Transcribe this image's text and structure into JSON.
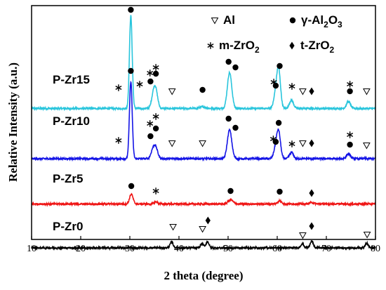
{
  "chart_data": {
    "type": "line",
    "title": "",
    "xlabel": "2 theta (degree)",
    "ylabel": "Relative Intensity (a.u.)",
    "xlim": [
      10,
      80
    ],
    "xticks": [
      "10",
      "20",
      "30",
      "40",
      "50",
      "60",
      "70",
      "80"
    ],
    "yticks": "none",
    "legend": {
      "placement": "top-right",
      "entries": [
        {
          "marker": "triangle-down-open",
          "text": "Al"
        },
        {
          "marker": "circle-filled",
          "text": "γ-Al",
          "sub": "2",
          "text2": "O",
          "sub2": "3"
        },
        {
          "marker": "asterisk",
          "text": "m-ZrO",
          "sub": "2"
        },
        {
          "marker": "diamond-filled",
          "text": "t-ZrO",
          "sub": "2"
        }
      ]
    },
    "series": [
      {
        "name": "P-Zr15",
        "color": "#29c5dc",
        "baseline": 0.85,
        "peaks": [
          [
            30.2,
            13.2,
            0.28
          ],
          [
            34.8,
            1.8,
            0.4
          ],
          [
            35.3,
            2.2,
            0.4
          ],
          [
            44.9,
            0.25,
            0.6
          ],
          [
            50.3,
            5.1,
            0.45
          ],
          [
            59.7,
            2.0,
            0.4
          ],
          [
            60.3,
            5.2,
            0.38
          ],
          [
            62.9,
            1.2,
            0.4
          ],
          [
            74.5,
            1.0,
            0.4
          ]
        ],
        "markers": [
          {
            "type": "circle",
            "x": 30.2,
            "y": 14.9
          },
          {
            "type": "asterisk",
            "x": 27.7,
            "y": 3.8
          },
          {
            "type": "asterisk",
            "x": 32.0,
            "y": 4.3
          },
          {
            "type": "asterisk",
            "x": 34.1,
            "y": 5.9
          },
          {
            "type": "circle",
            "x": 34.2,
            "y": 4.7
          },
          {
            "type": "asterisk",
            "x": 35.3,
            "y": 6.7
          },
          {
            "type": "circle",
            "x": 35.3,
            "y": 5.8
          },
          {
            "type": "triangle",
            "x": 38.6,
            "y": 3.3
          },
          {
            "type": "circle",
            "x": 44.8,
            "y": 3.5
          },
          {
            "type": "circle",
            "x": 50.1,
            "y": 7.5
          },
          {
            "type": "circle",
            "x": 51.5,
            "y": 6.7
          },
          {
            "type": "asterisk",
            "x": 59.3,
            "y": 4.6
          },
          {
            "type": "circle",
            "x": 60.5,
            "y": 6.9
          },
          {
            "type": "circle",
            "x": 59.7,
            "y": 4.1
          },
          {
            "type": "asterisk",
            "x": 63.0,
            "y": 4.0
          },
          {
            "type": "triangle",
            "x": 65.2,
            "y": 3.3
          },
          {
            "type": "diamond",
            "x": 67.0,
            "y": 3.3
          },
          {
            "type": "asterisk",
            "x": 74.8,
            "y": 4.3
          },
          {
            "type": "circle",
            "x": 74.8,
            "y": 3.3
          },
          {
            "type": "triangle",
            "x": 78.2,
            "y": 3.3
          }
        ]
      },
      {
        "name": "P-Zr10",
        "color": "#1414e6",
        "baseline": 0.6,
        "peaks": [
          [
            30.2,
            11.0,
            0.28
          ],
          [
            34.7,
            1.2,
            0.4
          ],
          [
            35.3,
            1.4,
            0.4
          ],
          [
            50.3,
            4.1,
            0.45
          ],
          [
            59.7,
            1.5,
            0.4
          ],
          [
            60.3,
            3.6,
            0.38
          ],
          [
            62.9,
            0.9,
            0.4
          ],
          [
            74.5,
            0.7,
            0.4
          ]
        ],
        "markers": [
          {
            "type": "circle",
            "x": 30.2,
            "y": 13.1
          },
          {
            "type": "asterisk",
            "x": 27.7,
            "y": 3.2
          },
          {
            "type": "asterisk",
            "x": 34.1,
            "y": 5.6
          },
          {
            "type": "circle",
            "x": 34.2,
            "y": 3.8
          },
          {
            "type": "asterisk",
            "x": 35.3,
            "y": 6.6
          },
          {
            "type": "circle",
            "x": 35.3,
            "y": 4.9
          },
          {
            "type": "triangle",
            "x": 38.6,
            "y": 2.8
          },
          {
            "type": "triangle",
            "x": 44.8,
            "y": 2.8
          },
          {
            "type": "circle",
            "x": 50.1,
            "y": 6.3
          },
          {
            "type": "circle",
            "x": 51.5,
            "y": 5.0
          },
          {
            "type": "asterisk",
            "x": 59.2,
            "y": 3.4
          },
          {
            "type": "circle",
            "x": 60.3,
            "y": 5.7
          },
          {
            "type": "circle",
            "x": 59.7,
            "y": 3.0
          },
          {
            "type": "asterisk",
            "x": 63.0,
            "y": 2.7
          },
          {
            "type": "triangle",
            "x": 65.2,
            "y": 2.8
          },
          {
            "type": "diamond",
            "x": 67.0,
            "y": 2.8
          },
          {
            "type": "asterisk",
            "x": 74.8,
            "y": 4.0
          },
          {
            "type": "circle",
            "x": 74.8,
            "y": 2.6
          },
          {
            "type": "triangle",
            "x": 78.2,
            "y": 2.5
          }
        ]
      },
      {
        "name": "P-Zr5",
        "color": "#ef1515",
        "baseline": 0.35,
        "peaks": [
          [
            30.3,
            1.4,
            0.35
          ],
          [
            35.3,
            0.3,
            0.4
          ],
          [
            50.5,
            0.6,
            0.5
          ],
          [
            60.5,
            0.45,
            0.4
          ],
          [
            67.0,
            0.2,
            0.5
          ]
        ],
        "markers": [
          {
            "type": "circle",
            "x": 30.3,
            "y": 2.9
          },
          {
            "type": "asterisk",
            "x": 35.3,
            "y": 2.2
          },
          {
            "type": "circle",
            "x": 50.5,
            "y": 2.2
          },
          {
            "type": "circle",
            "x": 60.5,
            "y": 2.1
          },
          {
            "type": "diamond",
            "x": 67.0,
            "y": 1.9
          }
        ]
      },
      {
        "name": "P-Zr0",
        "color": "#000000",
        "baseline": 0.2,
        "peaks": [
          [
            38.5,
            0.85,
            0.3
          ],
          [
            44.7,
            0.6,
            0.3
          ],
          [
            45.8,
            0.9,
            0.3
          ],
          [
            65.1,
            0.6,
            0.3
          ],
          [
            67.0,
            1.0,
            0.3
          ],
          [
            78.2,
            0.7,
            0.3
          ]
        ],
        "markers": [
          {
            "type": "triangle",
            "x": 38.8,
            "y": 3.2
          },
          {
            "type": "triangle",
            "x": 44.8,
            "y": 2.9
          },
          {
            "type": "diamond",
            "x": 45.9,
            "y": 4.1
          },
          {
            "type": "triangle",
            "x": 65.2,
            "y": 2.0
          },
          {
            "type": "diamond",
            "x": 67.0,
            "y": 3.3
          },
          {
            "type": "triangle",
            "x": 78.3,
            "y": 2.1
          }
        ]
      }
    ]
  }
}
